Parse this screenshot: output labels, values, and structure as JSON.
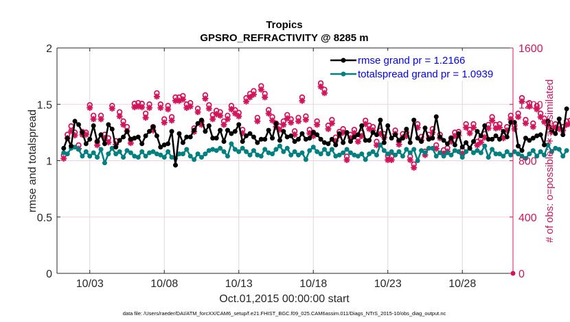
{
  "chart_data": {
    "type": "line",
    "title": "Tropics",
    "subtitle": "GPSRO_REFRACTIVITY @ 8285 m",
    "xlabel": "Oct.01,2015 00:00:00 start",
    "ylabel": "rmse and totalspread",
    "ylabel_right": "# of obs: o=possible; ∗=assimilated",
    "footnote": "data file: /Users/raeder/DAI/ATM_forcXX/CAM6_setup/f.e21.FHIST_BGC.f09_025.CAM6assim.011/Diags_NTrS_2015-10/obs_diag_output.nc",
    "x_unit": "days since Oct.01,2015 00:00:00",
    "xlim": [
      -0.2,
      30.4
    ],
    "ylim": [
      0,
      2
    ],
    "ylim_right": [
      0,
      1600
    ],
    "grid": true,
    "legend_position": "top-right",
    "x_ticks": [
      {
        "value": 2,
        "label": "10/03"
      },
      {
        "value": 7,
        "label": "10/08"
      },
      {
        "value": 12,
        "label": "10/13"
      },
      {
        "value": 17,
        "label": "10/18"
      },
      {
        "value": 22,
        "label": "10/23"
      },
      {
        "value": 27,
        "label": "10/28"
      }
    ],
    "y_ticks": [
      {
        "value": 0,
        "label": "0"
      },
      {
        "value": 0.5,
        "label": "0.5"
      },
      {
        "value": 1,
        "label": "1"
      },
      {
        "value": 1.5,
        "label": "1.5"
      },
      {
        "value": 2,
        "label": "2"
      }
    ],
    "y_ticks_right": [
      {
        "value": 0,
        "label": "0"
      },
      {
        "value": 400,
        "label": "400"
      },
      {
        "value": 800,
        "label": "800"
      },
      {
        "value": 1200,
        "label": "1200"
      },
      {
        "value": 1600,
        "label": "1600"
      }
    ],
    "x_start": 0.25,
    "x_step": 0.25,
    "series": [
      {
        "name": "rmse grand pr = 1.2166",
        "axis": "left",
        "color": "#000000",
        "values": [
          1.11,
          1.2,
          1.13,
          1.35,
          1.32,
          1.25,
          1.15,
          1.19,
          1.31,
          1.17,
          1.23,
          1.15,
          1.32,
          1.28,
          1.12,
          1.18,
          1.21,
          1.26,
          1.19,
          1.2,
          1.21,
          1.15,
          1.22,
          1.26,
          1.3,
          1.22,
          1.12,
          1.14,
          1.15,
          1.26,
          0.96,
          1.24,
          1.16,
          1.21,
          1.21,
          1.27,
          1.33,
          1.36,
          1.26,
          1.31,
          1.2,
          1.2,
          1.27,
          1.17,
          1.27,
          1.24,
          1.26,
          1.32,
          1.17,
          1.22,
          1.24,
          1.21,
          1.16,
          1.19,
          1.19,
          1.27,
          1.2,
          1.33,
          1.18,
          1.26,
          1.21,
          1.22,
          1.17,
          1.19,
          1.24,
          1.19,
          1.2,
          1.25,
          1.23,
          1.19,
          1.16,
          1.15,
          1.19,
          1.14,
          1.24,
          1.16,
          1.25,
          1.17,
          1.21,
          1.23,
          1.31,
          1.18,
          1.18,
          1.25,
          1.23,
          1.36,
          1.16,
          1.31,
          1.2,
          1.23,
          1.18,
          1.2,
          1.28,
          1.16,
          1.36,
          1.2,
          1.17,
          1.29,
          1.19,
          1.2,
          1.39,
          1.21,
          1.18,
          1.15,
          1.2,
          1.14,
          1.24,
          1.12,
          1.16,
          1.11,
          1.17,
          1.26,
          1.22,
          1.31,
          1.19,
          1.19,
          1.22,
          1.19,
          1.26,
          1.21,
          1.34,
          1.34,
          1.13,
          1.09,
          1.2,
          1.18,
          1.2,
          1.22,
          1.23,
          1.14,
          1.35,
          1.27,
          1.24,
          1.37,
          1.23,
          1.46
        ]
      },
      {
        "name": "totalspread grand pr = 1.0939",
        "axis": "left",
        "color": "#00807f",
        "values": [
          1.07,
          1.06,
          1.11,
          1.12,
          1.1,
          1.04,
          1.08,
          1.04,
          1.07,
          1.03,
          1.1,
          0.98,
          1.06,
          1.11,
          1.06,
          1.08,
          1.03,
          1.09,
          1.07,
          1.04,
          1.03,
          1.08,
          1.04,
          1.07,
          1.08,
          1.06,
          1.05,
          1.03,
          1.08,
          1.03,
          1.02,
          1.06,
          1.06,
          1.1,
          1.04,
          1.01,
          1.06,
          1.03,
          1.06,
          1.09,
          1.1,
          1.09,
          1.11,
          1.08,
          1.04,
          1.15,
          1.1,
          1.08,
          1.11,
          1.08,
          1.05,
          1.09,
          1.05,
          1.04,
          1.1,
          1.07,
          1.06,
          1.1,
          1.13,
          1.08,
          1.11,
          1.05,
          1.08,
          1.05,
          1.07,
          1.01,
          1.09,
          1.12,
          1.08,
          1.06,
          1.1,
          1.06,
          1.1,
          1.04,
          1.05,
          1.07,
          1.1,
          1.07,
          1.05,
          1.04,
          1.06,
          1.01,
          1.06,
          1.08,
          1.05,
          1.14,
          1.09,
          1.06,
          1.08,
          1.05,
          1.08,
          1.04,
          1.1,
          1.07,
          1.1,
          1.0,
          1.09,
          1.07,
          1.11,
          1.11,
          1.04,
          1.07,
          1.04,
          1.07,
          1.05,
          1.09,
          1.08,
          1.03,
          1.08,
          1.11,
          1.07,
          1.09,
          1.07,
          1.13,
          1.03,
          1.1,
          1.06,
          1.06,
          1.04,
          1.08,
          1.05,
          1.08,
          1.06,
          1.04,
          1.02,
          1.06,
          1.09,
          1.04,
          1.08,
          1.05,
          1.14,
          1.08,
          1.11,
          1.1,
          1.04,
          1.09
        ]
      },
      {
        "name": "possible obs (o)",
        "axis": "right",
        "color": "#d4145a",
        "marker": "circle",
        "values": [
          840,
          985,
          1045,
          1000,
          910,
          1005,
          1000,
          1195,
          1120,
          935,
          1120,
          985,
          960,
          1190,
          940,
          1145,
          1080,
          1040,
          950,
          1205,
          1210,
          1205,
          1135,
          1200,
          1040,
          1280,
          1200,
          1095,
          1190,
          1110,
          1250,
          1250,
          1260,
          1200,
          1210,
          1030,
          1170,
          1080,
          1265,
          1195,
          1125,
          1155,
          1145,
          1080,
          1120,
          1190,
          1160,
          1140,
          1020,
          1245,
          1275,
          1295,
          1105,
          1330,
          1275,
          1160,
          1110,
          1065,
          1045,
          1080,
          1125,
          1095,
          1010,
          1105,
          1250,
          1115,
          1020,
          1000,
          1080,
          1350,
          1305,
          1050,
          1090,
          965,
          1005,
          1025,
          830,
          985,
          1020,
          960,
          1000,
          1085,
          1050,
          1040,
          935,
          1015,
          990,
          835,
          830,
          1015,
          940,
          990,
          1000,
          830,
          775,
          1060,
          970,
          865,
          985,
          1025,
          910,
          985,
          875,
          890,
          960,
          1000,
          1005,
          875,
          1060,
          1020,
          1060,
          935,
          955,
          990,
          1055,
          1110,
          1055,
          1060,
          985,
          1040,
          1120,
          1050,
          1135,
          1245,
          1090,
          1210,
          1065,
          1190,
          1135,
          1100,
          1075,
          1030,
          1060,
          1050,
          1040,
          1080,
          1085,
          1090
        ]
      },
      {
        "name": "assimilated obs (∗)",
        "axis": "right",
        "color": "#d4145a",
        "marker": "asterisk",
        "values": [
          815,
          960,
          1010,
          980,
          885,
          985,
          985,
          1175,
          1095,
          910,
          1095,
          960,
          930,
          1170,
          915,
          1115,
          1055,
          1010,
          925,
          1180,
          1185,
          1180,
          1105,
          1175,
          1015,
          1255,
          1175,
          1070,
          1165,
          1085,
          1225,
          1225,
          1235,
          1175,
          1185,
          1005,
          1145,
          1055,
          1240,
          1170,
          1095,
          1130,
          1120,
          1055,
          1095,
          1165,
          1135,
          1115,
          995,
          1220,
          1250,
          1270,
          1080,
          1305,
          1250,
          1135,
          1085,
          1040,
          1020,
          1055,
          1100,
          1070,
          985,
          1080,
          1225,
          1090,
          995,
          975,
          1055,
          1325,
          1280,
          1025,
          1065,
          940,
          980,
          1000,
          805,
          960,
          995,
          935,
          975,
          1060,
          1025,
          1015,
          910,
          990,
          965,
          805,
          805,
          990,
          915,
          965,
          975,
          805,
          750,
          1035,
          945,
          840,
          960,
          1000,
          885,
          960,
          850,
          865,
          935,
          975,
          980,
          850,
          1035,
          995,
          1035,
          910,
          930,
          965,
          1030,
          1085,
          1030,
          1035,
          960,
          1015,
          1095,
          1025,
          1110,
          1220,
          1065,
          1185,
          1040,
          1165,
          1110,
          1075,
          1050,
          1005,
          1035,
          1025,
          1015,
          1055,
          1060,
          1065
        ]
      }
    ]
  },
  "legend": {
    "items": [
      {
        "label": "rmse grand pr = 1.2166",
        "color": "#000000"
      },
      {
        "label": "totalspread grand pr = 1.0939",
        "color": "#00807f"
      }
    ],
    "text_color": "#0000ff"
  },
  "colors": {
    "axis_left": "#262626",
    "axis_right": "#d4145a",
    "grid_x": "#d9d9d9",
    "grid_y": "#f5cfe0"
  }
}
